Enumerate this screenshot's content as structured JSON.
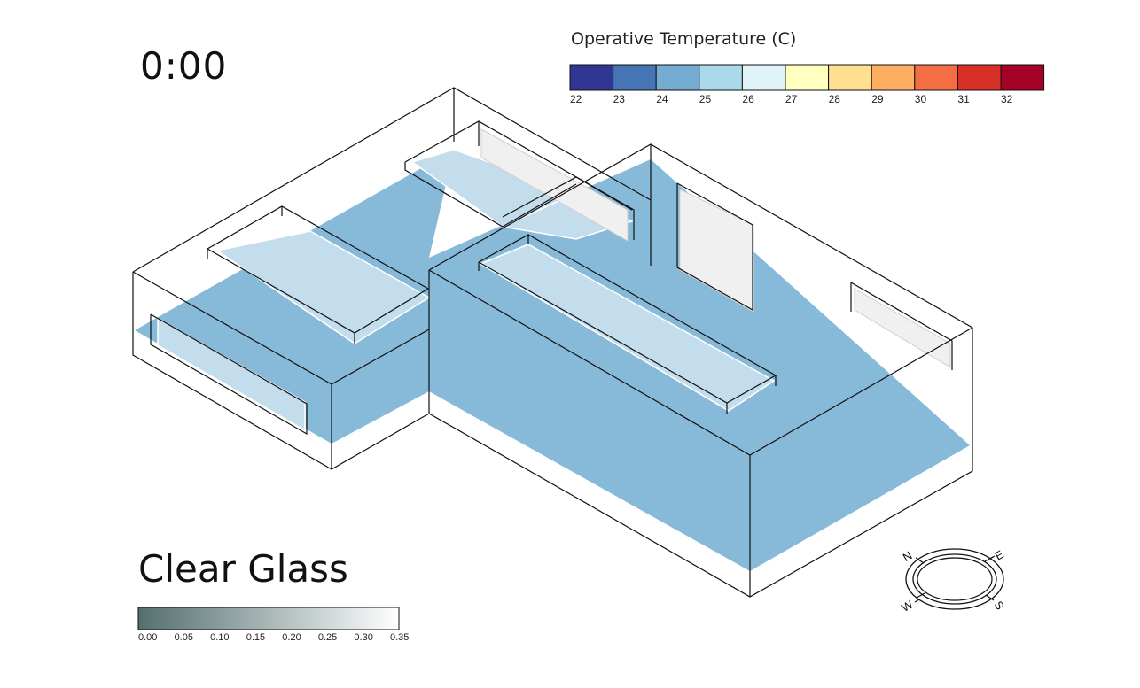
{
  "time_label": "0:00",
  "glazing_label": "Clear Glass",
  "temperature_legend": {
    "title": "Operative Temperature (C)",
    "ticks": [
      "22",
      "23",
      "24",
      "25",
      "26",
      "27",
      "28",
      "29",
      "30",
      "31",
      "32"
    ],
    "colors": [
      "#313695",
      "#4575b4",
      "#74add1",
      "#abd9e9",
      "#e0f3f8",
      "#ffffbf",
      "#fee090",
      "#fdae61",
      "#f46d43",
      "#d73027",
      "#a50026"
    ]
  },
  "glass_legend": {
    "ticks": [
      "0.00",
      "0.05",
      "0.10",
      "0.15",
      "0.20",
      "0.25",
      "0.30",
      "0.35"
    ],
    "color_start": "#546f6f",
    "color_end": "#ffffff"
  },
  "compass": {
    "north": "N",
    "east": "E",
    "south": "S",
    "west": "W"
  },
  "colors": {
    "floor": "#87b9d9",
    "skylight": "#c4dded",
    "window_glass": "#f0f0f0",
    "outline": "#111111"
  }
}
